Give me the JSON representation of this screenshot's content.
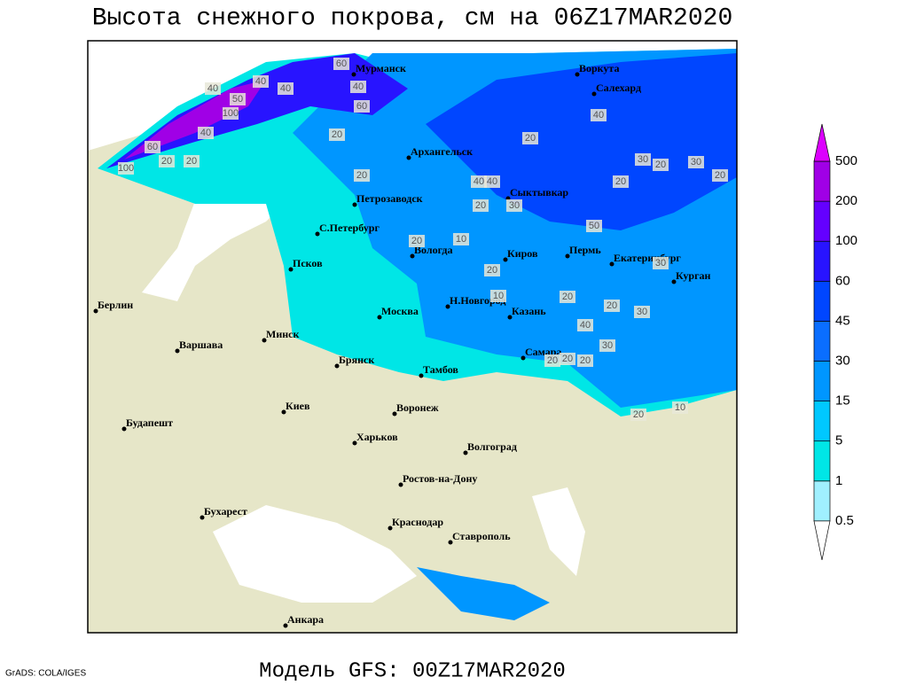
{
  "title": "Высота снежного покрова, см на 06Z17MAR2020",
  "footer": "Модель GFS: 00Z17MAR2020",
  "credit": "GrADS: COLA/IGES",
  "legend": {
    "levels": [
      0.5,
      1,
      5,
      15,
      30,
      45,
      60,
      100,
      200,
      500
    ],
    "colors": [
      "#a0f0ff",
      "#00e6e6",
      "#00c8ff",
      "#0096ff",
      "#0a6eff",
      "#0046ff",
      "#2814ff",
      "#6400ff",
      "#a000e6"
    ],
    "under_color": "#ffffff",
    "over_color": "#dc00ff"
  },
  "cities": [
    "Мурманск",
    "Воркута",
    "Салехард",
    "Архангельск",
    "Сыктывкар",
    "Петрозаводск",
    "С.Петербург",
    "Вологда",
    "Киров",
    "Пермь",
    "Екатеринбург",
    "Курган",
    "Псков",
    "Берлин",
    "Н.Новгород",
    "Москва",
    "Казань",
    "Минск",
    "Варшава",
    "Брянск",
    "Самара",
    "Тамбов",
    "Воронеж",
    "Киев",
    "Будапешт",
    "Харьков",
    "Волгоград",
    "Ростов-на-Дону",
    "Бухарест",
    "Краснодар",
    "Ставрополь",
    "Анкара"
  ],
  "contour_labels": [
    60,
    40,
    40,
    40,
    50,
    100,
    60,
    40,
    60,
    40,
    100,
    20,
    20,
    40,
    30,
    20,
    20,
    10,
    20,
    40,
    30,
    20,
    40,
    20,
    30,
    20,
    10,
    20,
    40,
    20,
    30,
    20,
    20,
    20,
    30,
    20,
    30,
    20,
    20,
    10,
    20,
    50
  ]
}
